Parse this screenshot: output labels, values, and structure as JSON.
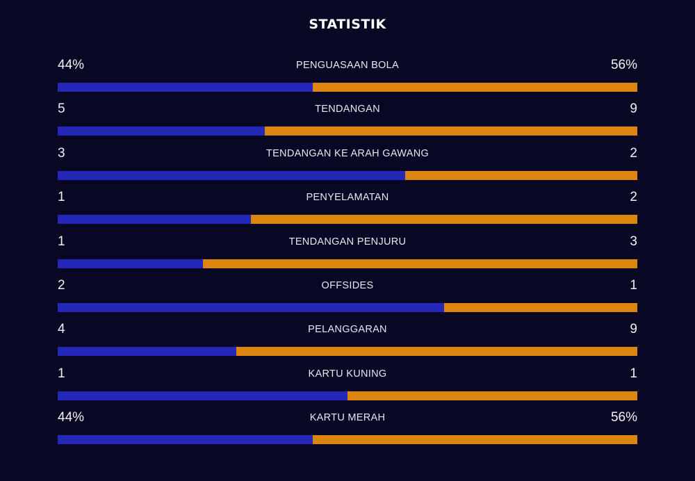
{
  "header": {
    "title": "STATISTIK"
  },
  "colors": {
    "background": "#080724",
    "home_bar": "#2527b8",
    "away_bar": "#dd860f",
    "text": "#ffffff"
  },
  "stats": [
    {
      "label": "PENGUASAAN BOLA",
      "home": "44%",
      "away": "56%",
      "home_share": 0.44
    },
    {
      "label": "TENDANGAN",
      "home": "5",
      "away": "9",
      "home_share": 0.357
    },
    {
      "label": "TENDANGAN KE ARAH GAWANG",
      "home": "3",
      "away": "2",
      "home_share": 0.6
    },
    {
      "label": "PENYELAMATAN",
      "home": "1",
      "away": "2",
      "home_share": 0.333
    },
    {
      "label": "TENDANGAN PENJURU",
      "home": "1",
      "away": "3",
      "home_share": 0.25
    },
    {
      "label": "OFFSIDES",
      "home": "2",
      "away": "1",
      "home_share": 0.667
    },
    {
      "label": "PELANGGARAN",
      "home": "4",
      "away": "9",
      "home_share": 0.308
    },
    {
      "label": "KARTU KUNING",
      "home": "1",
      "away": "1",
      "home_share": 0.5
    },
    {
      "label": "KARTU MERAH",
      "home": "44%",
      "away": "56%",
      "home_share": 0.44
    }
  ]
}
